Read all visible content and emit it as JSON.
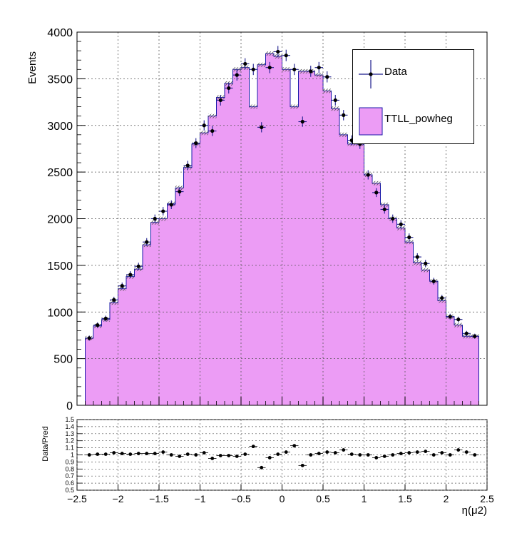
{
  "chart_data": [
    {
      "type": "bar",
      "ylabel": "Events",
      "xlim": [
        -2.5,
        2.5
      ],
      "ylim": [
        0,
        4000
      ],
      "grid": true,
      "legend_position": "top-right",
      "y_ticks": [
        "0",
        "500",
        "1000",
        "1500",
        "2000",
        "2500",
        "3000",
        "3500",
        "4000"
      ],
      "bin_edges": [
        -2.4,
        -2.3,
        -2.2,
        -2.1,
        -2.0,
        -1.9,
        -1.8,
        -1.7,
        -1.6,
        -1.5,
        -1.4,
        -1.3,
        -1.2,
        -1.1,
        -1.0,
        -0.9,
        -0.8,
        -0.7,
        -0.6,
        -0.5,
        -0.4,
        -0.3,
        -0.2,
        -0.1,
        0.0,
        0.1,
        0.2,
        0.3,
        0.4,
        0.5,
        0.6,
        0.7,
        0.8,
        0.9,
        1.0,
        1.1,
        1.2,
        1.3,
        1.4,
        1.5,
        1.6,
        1.7,
        1.8,
        1.9,
        2.0,
        2.1,
        2.2,
        2.3,
        2.4
      ],
      "series": [
        {
          "name": "TTLL_powheg",
          "style": "filled-histogram",
          "values": [
            720,
            850,
            920,
            1100,
            1250,
            1380,
            1460,
            1720,
            1960,
            2000,
            2160,
            2330,
            2550,
            2800,
            2920,
            3100,
            3300,
            3450,
            3600,
            3620,
            3200,
            3650,
            3770,
            3740,
            3600,
            3200,
            3580,
            3580,
            3540,
            3370,
            3180,
            2900,
            2800,
            2800,
            2470,
            2380,
            2150,
            2000,
            1900,
            1750,
            1530,
            1450,
            1330,
            1120,
            950,
            860,
            740,
            740
          ]
        },
        {
          "name": "Data",
          "style": "points-with-errors",
          "values": [
            720,
            860,
            930,
            1130,
            1280,
            1400,
            1490,
            1750,
            2000,
            2080,
            2150,
            2290,
            2570,
            2810,
            3000,
            2940,
            3270,
            3400,
            3540,
            3660,
            3600,
            2980,
            3620,
            3790,
            3750,
            3600,
            3040,
            3580,
            3620,
            3520,
            3270,
            3110,
            2840,
            2800,
            2470,
            2280,
            2100,
            2000,
            1940,
            1800,
            1590,
            1520,
            1330,
            1150,
            950,
            920,
            770,
            740
          ]
        }
      ]
    },
    {
      "type": "scatter",
      "ylabel": "Data/Pred",
      "xlabel": "η(μ2)",
      "xlim": [
        -2.5,
        2.5
      ],
      "ylim": [
        0.5,
        1.5
      ],
      "grid": true,
      "x_ticks": [
        "−2.5",
        "−2",
        "−1.5",
        "−1",
        "−0.5",
        "0",
        "0.5",
        "1",
        "1.5",
        "2",
        "2.5"
      ],
      "y_ticks": [
        "0.5",
        "0.6",
        "0.7",
        "0.8",
        "0.9",
        "1",
        "1.1",
        "1.2",
        "1.3",
        "1.4",
        "1.5"
      ],
      "series": [
        {
          "values": [
            1.0,
            1.01,
            1.01,
            1.03,
            1.02,
            1.01,
            1.02,
            1.02,
            1.02,
            1.04,
            1.0,
            0.98,
            1.01,
            1.0,
            1.03,
            0.95,
            0.99,
            0.99,
            0.98,
            1.01,
            1.12,
            0.82,
            0.96,
            1.01,
            1.04,
            1.13,
            0.85,
            1.0,
            1.02,
            1.04,
            1.03,
            1.07,
            1.01,
            1.0,
            1.0,
            0.96,
            0.98,
            1.0,
            1.02,
            1.03,
            1.04,
            1.05,
            1.0,
            1.03,
            1.0,
            1.07,
            1.04,
            1.0
          ]
        }
      ]
    }
  ]
}
